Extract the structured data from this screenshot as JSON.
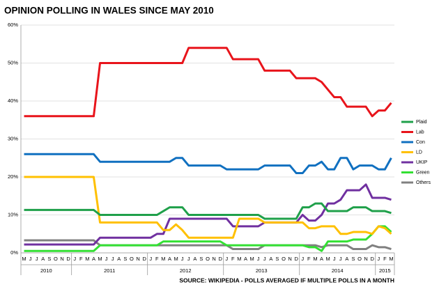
{
  "chart_data": {
    "type": "line",
    "title": "OPINION POLLING IN WALES SINCE MAY 2010",
    "source": "SOURCE: WIKIPEDIA - POLLS AVERAGED IF MULTIPLE POLLS IN A MONTH",
    "categories": [
      "M",
      "J",
      "J",
      "A",
      "S",
      "O",
      "N",
      "D",
      "J",
      "F",
      "M",
      "A",
      "M",
      "J",
      "J",
      "A",
      "S",
      "O",
      "N",
      "D",
      "J",
      "F",
      "M",
      "A",
      "M",
      "J",
      "J",
      "A",
      "S",
      "O",
      "N",
      "D",
      "J",
      "F",
      "M",
      "A",
      "M",
      "J",
      "J",
      "A",
      "S",
      "O",
      "N",
      "D",
      "J",
      "F",
      "M",
      "A",
      "M",
      "J",
      "J",
      "A",
      "S",
      "O",
      "N",
      "D",
      "J",
      "F",
      "M"
    ],
    "year_labels": [
      "2010",
      "2011",
      "2012",
      "2013",
      "2014",
      "2015"
    ],
    "ylim": [
      0,
      60
    ],
    "yticks": [
      {
        "value": 0,
        "label": "0%"
      },
      {
        "value": 10,
        "label": "10%"
      },
      {
        "value": 20,
        "label": "20%"
      },
      {
        "value": 30,
        "label": "30%"
      },
      {
        "value": 40,
        "label": "40%"
      },
      {
        "value": 50,
        "label": "50%"
      },
      {
        "value": 60,
        "label": "60%"
      }
    ],
    "grid": true,
    "legend": "right",
    "series": [
      {
        "name": "Plaid",
        "color": "#1fa04a",
        "values": [
          11.3,
          11.3,
          11.3,
          11.3,
          11.3,
          11.3,
          11.3,
          11.3,
          11.3,
          11.3,
          11.3,
          11.3,
          10,
          10,
          10,
          10,
          10,
          10,
          10,
          10,
          10,
          10,
          11,
          12,
          12,
          12,
          10,
          10,
          10,
          10,
          10,
          10,
          10,
          10,
          10,
          10,
          10,
          10,
          9,
          9,
          9,
          9,
          9,
          9,
          12,
          12,
          13,
          13,
          11,
          11,
          11,
          11,
          12,
          12,
          12,
          11,
          11,
          11,
          10.5
        ]
      },
      {
        "name": "Lab",
        "color": "#e8141b",
        "values": [
          36,
          36,
          36,
          36,
          36,
          36,
          36,
          36,
          36,
          36,
          36,
          36,
          50,
          50,
          50,
          50,
          50,
          50,
          50,
          50,
          50,
          50,
          50,
          50,
          50,
          50,
          54,
          54,
          54,
          54,
          54,
          54,
          54,
          51,
          51,
          51,
          51,
          51,
          48,
          48,
          48,
          48,
          48,
          46,
          46,
          46,
          46,
          45,
          43,
          41,
          41,
          38.5,
          38.5,
          38.5,
          38.5,
          36,
          37.5,
          37.5,
          39.5
        ]
      },
      {
        "name": "Con",
        "color": "#1070c0",
        "values": [
          26,
          26,
          26,
          26,
          26,
          26,
          26,
          26,
          26,
          26,
          26,
          26,
          24,
          24,
          24,
          24,
          24,
          24,
          24,
          24,
          24,
          24,
          24,
          24,
          25,
          25,
          23,
          23,
          23,
          23,
          23,
          23,
          22,
          22,
          22,
          22,
          22,
          22,
          23,
          23,
          23,
          23,
          23,
          21,
          21,
          23,
          23,
          24,
          22,
          22,
          25,
          25,
          22,
          23,
          23,
          23,
          22,
          22,
          25
        ]
      },
      {
        "name": "LD",
        "color": "#ffc000",
        "values": [
          20,
          20,
          20,
          20,
          20,
          20,
          20,
          20,
          20,
          20,
          20,
          20,
          8,
          8,
          8,
          8,
          8,
          8,
          8,
          8,
          8,
          8,
          6,
          6,
          7.5,
          6,
          4,
          4,
          4,
          4,
          4,
          4,
          4,
          4,
          9,
          9,
          9,
          9,
          8,
          8,
          8,
          8,
          8,
          8,
          8,
          6.5,
          6.5,
          7,
          7,
          7,
          5,
          5,
          5.5,
          5.5,
          5.5,
          5,
          7,
          6.5,
          5
        ]
      },
      {
        "name": "UKIP",
        "color": "#7030a0",
        "values": [
          2.2,
          2.2,
          2.2,
          2.2,
          2.2,
          2.2,
          2.2,
          2.2,
          2.2,
          2.2,
          2.2,
          2.2,
          4,
          4,
          4,
          4,
          4,
          4,
          4,
          4,
          4,
          5,
          5,
          9,
          9,
          9,
          9,
          9,
          9,
          9,
          9,
          9,
          9,
          7,
          7,
          7,
          7,
          7,
          8,
          8,
          8,
          8,
          8,
          8,
          10,
          8.5,
          8.5,
          10,
          13,
          13,
          14,
          16.5,
          16.5,
          16.5,
          18,
          14.5,
          14.5,
          14.5,
          14
        ]
      },
      {
        "name": "Green",
        "color": "#33e033",
        "values": [
          0.5,
          0.5,
          0.5,
          0.5,
          0.5,
          0.5,
          0.5,
          0.5,
          0.5,
          0.5,
          0.5,
          0.5,
          2,
          2,
          2,
          2,
          2,
          2,
          2,
          2,
          2,
          2,
          3,
          3,
          3,
          3,
          3,
          3,
          3,
          3,
          3,
          3,
          2,
          2,
          2,
          2,
          2,
          2,
          2,
          2,
          2,
          2,
          2,
          2,
          2,
          1.5,
          1.5,
          0.5,
          3,
          3,
          3,
          3,
          3.5,
          3.5,
          3.5,
          5,
          7,
          7,
          5.5
        ]
      },
      {
        "name": "Others",
        "color": "#808080",
        "values": [
          3.3,
          3.3,
          3.3,
          3.3,
          3.3,
          3.3,
          3.3,
          3.3,
          3.3,
          3.3,
          3.3,
          3.3,
          2,
          2,
          2,
          2,
          2,
          2,
          2,
          2,
          2,
          2,
          2,
          2,
          2,
          2,
          2,
          2,
          2,
          2,
          2,
          2,
          2,
          1,
          1,
          1,
          1,
          1,
          2,
          2,
          2,
          2,
          2,
          2,
          2,
          2,
          2,
          1.5,
          2,
          2,
          2,
          2,
          1,
          1,
          1,
          2,
          1.5,
          1.5,
          1
        ]
      }
    ]
  }
}
